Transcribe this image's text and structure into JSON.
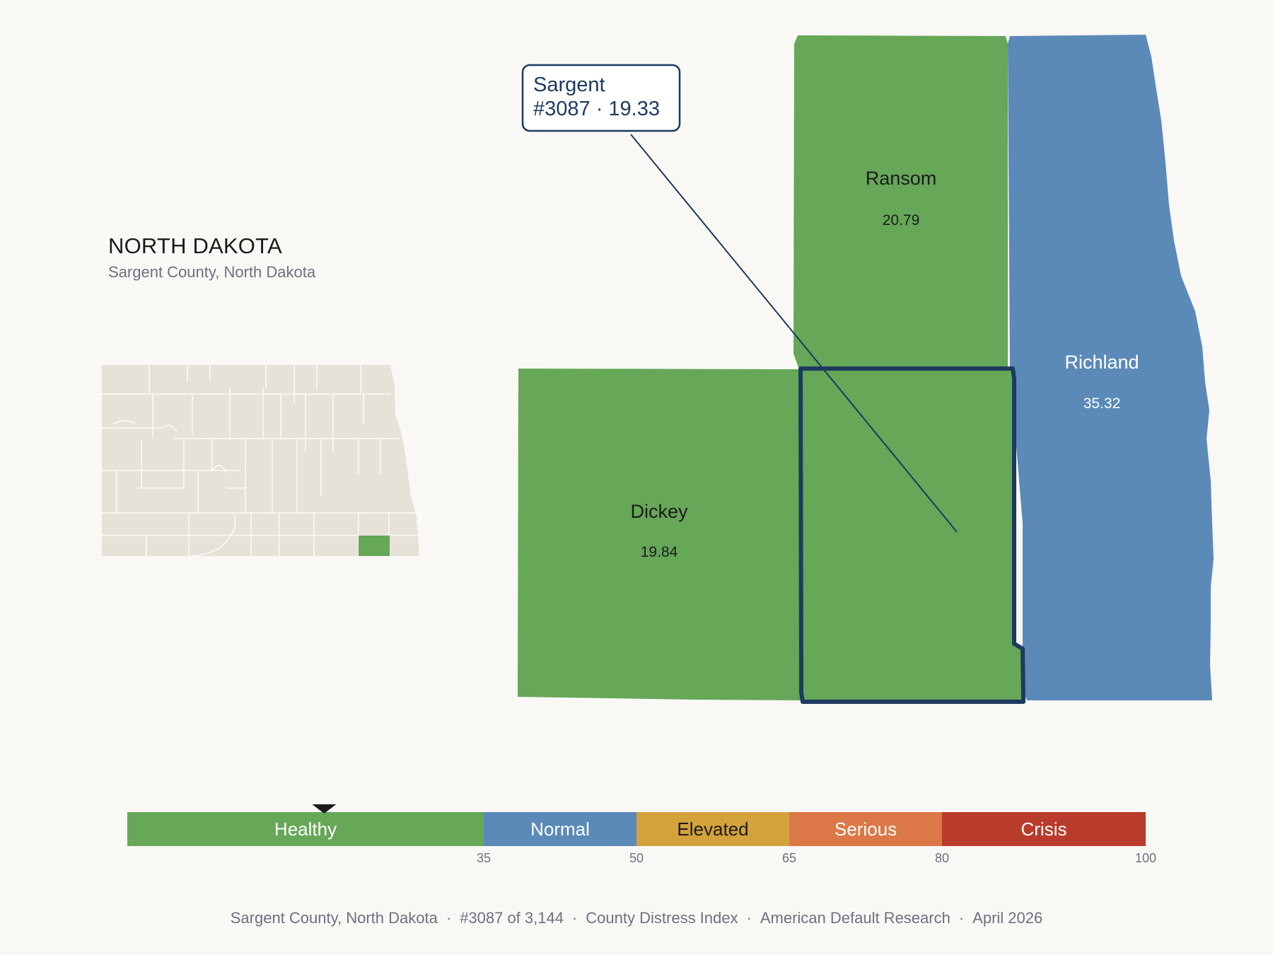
{
  "header": {
    "state_title": "NORTH DAKOTA",
    "county_subtitle": "Sargent County, North Dakota"
  },
  "callout": {
    "county": "Sargent",
    "rank_score": "#3087 · 19.33"
  },
  "counties": [
    {
      "name": "Ransom",
      "score": "20.79",
      "category": "Healthy"
    },
    {
      "name": "Richland",
      "score": "35.32",
      "category": "Normal"
    },
    {
      "name": "Dickey",
      "score": "19.84",
      "category": "Healthy"
    },
    {
      "name": "Sargent",
      "score": "19.33",
      "category": "Healthy",
      "selected": true
    }
  ],
  "legend": {
    "selected_value": 19.33,
    "min": 0,
    "max": 100,
    "segments": [
      {
        "label": "Healthy",
        "from": 0,
        "to": 35,
        "color": "#66a758",
        "text_color": "#ffffff"
      },
      {
        "label": "Normal",
        "from": 35,
        "to": 50,
        "color": "#5b8ab9",
        "text_color": "#ffffff"
      },
      {
        "label": "Elevated",
        "from": 50,
        "to": 65,
        "color": "#d3a23b",
        "text_color": "#1b1b1b"
      },
      {
        "label": "Serious",
        "from": 65,
        "to": 80,
        "color": "#dc7748",
        "text_color": "#ffffff"
      },
      {
        "label": "Crisis",
        "from": 80,
        "to": 100,
        "color": "#b93b2b",
        "text_color": "#ffffff"
      }
    ],
    "ticks": [
      "35",
      "50",
      "65",
      "80",
      "100"
    ]
  },
  "footer": {
    "county": "Sargent County, North Dakota",
    "rank": "#3087 of 3,144",
    "index_name": "County Distress Index",
    "source": "American Default Research",
    "date": "April 2026",
    "separator": "·"
  },
  "colors": {
    "healthy": "#66a758",
    "normal": "#5b8ab9",
    "outline": "#1d3a5f",
    "inset_land": "#e7e2d7",
    "background": "#f9f8f5"
  }
}
